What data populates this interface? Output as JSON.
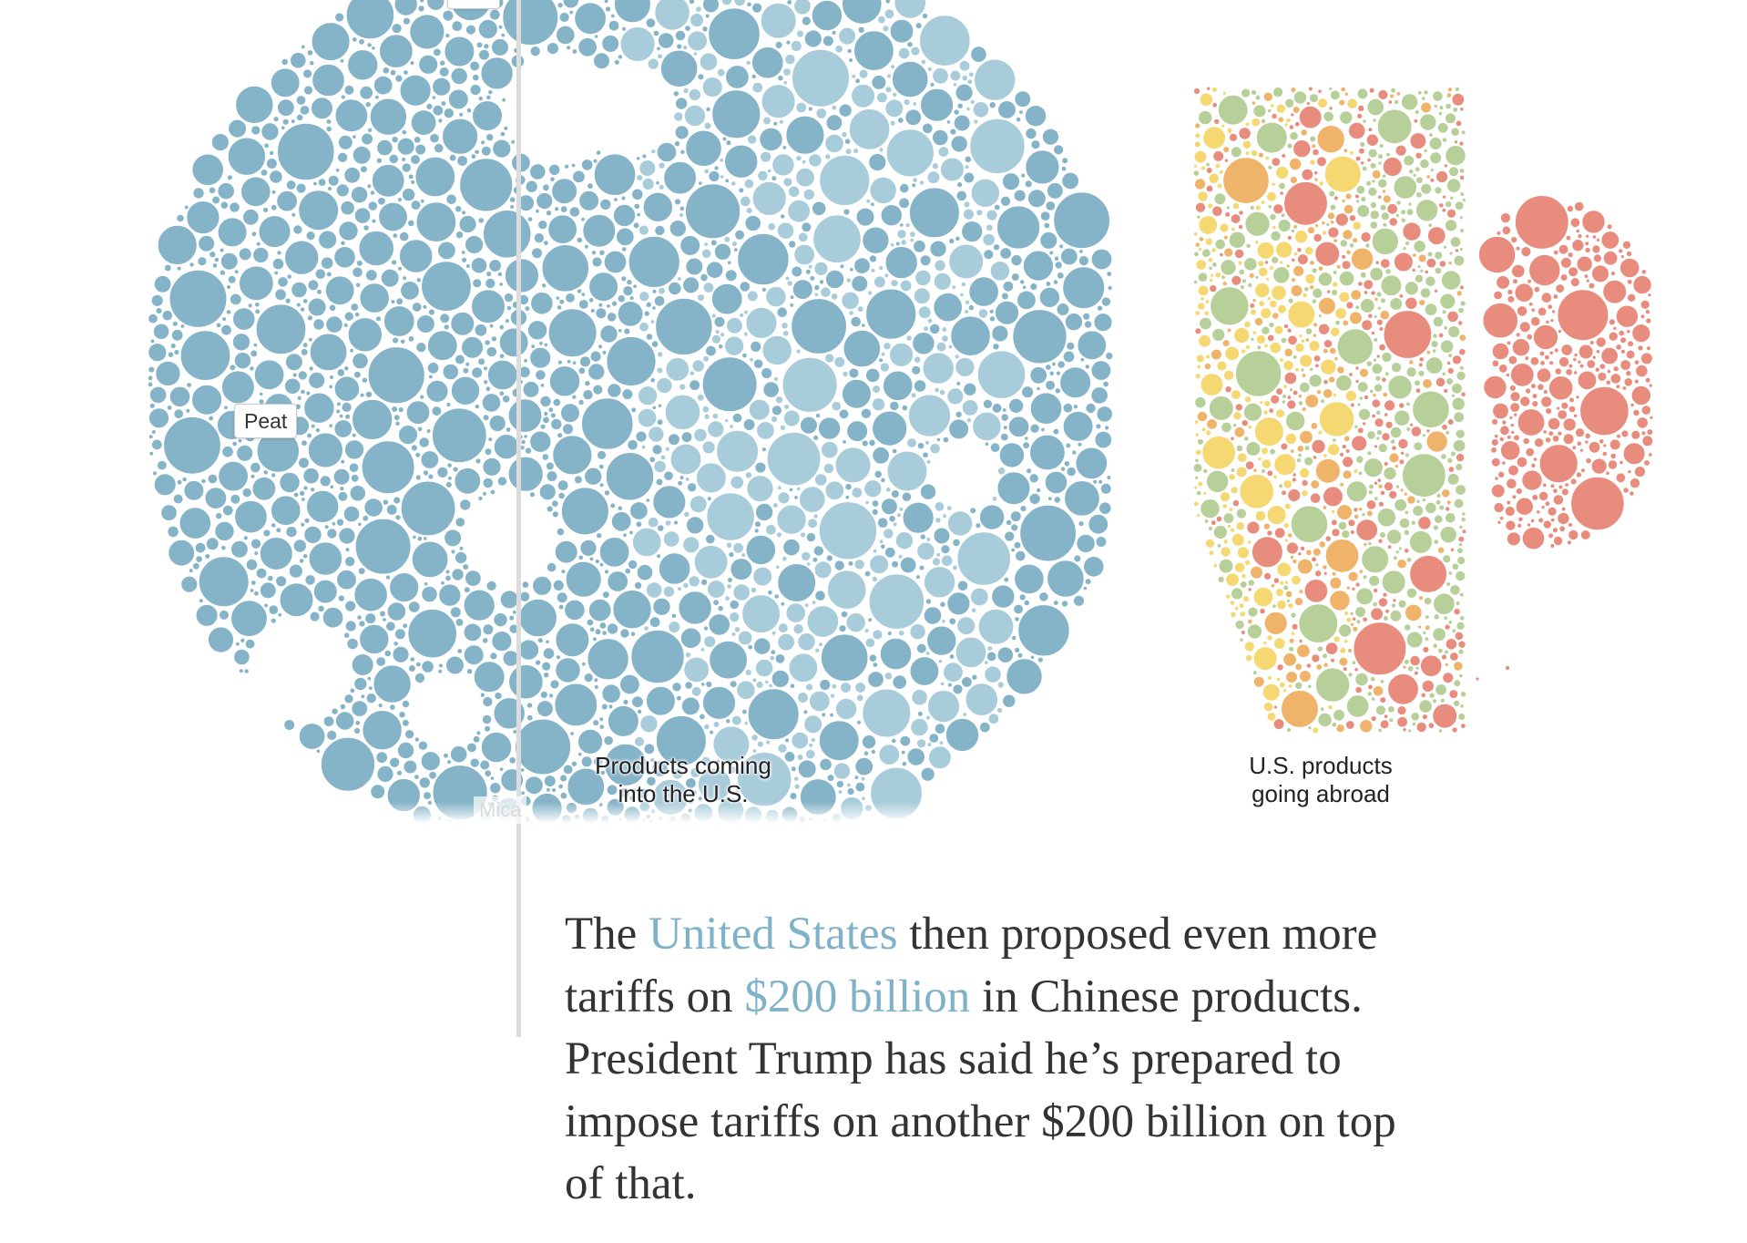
{
  "chart_data": {
    "type": "bubble-pack",
    "title": "",
    "panels": [
      {
        "name": "imports",
        "label": "Products coming\ninto the U.S.",
        "colors": {
          "dark": "#85b4c9",
          "light": "#a9ccdb"
        }
      },
      {
        "name": "exports",
        "label": "U.S. products\ngoing abroad",
        "colors": {
          "red": "#e88c7d",
          "orange": "#f0b36a",
          "yellow": "#f5d872",
          "green": "#b7cf98"
        }
      }
    ],
    "tooltips": {
      "peat": "Peat",
      "ghost": "Mica"
    }
  },
  "caption": {
    "part1": "The ",
    "link1": "United States",
    "part2": " then proposed even more tariffs on ",
    "link2": "$200 billion",
    "part3": " in Chinese products. President Trump has said he’s prepared to impose tariffs on another $200 billion on top of that."
  },
  "colors": {
    "accent_link": "#7fb2c9",
    "divider": "#dcdcdc"
  }
}
